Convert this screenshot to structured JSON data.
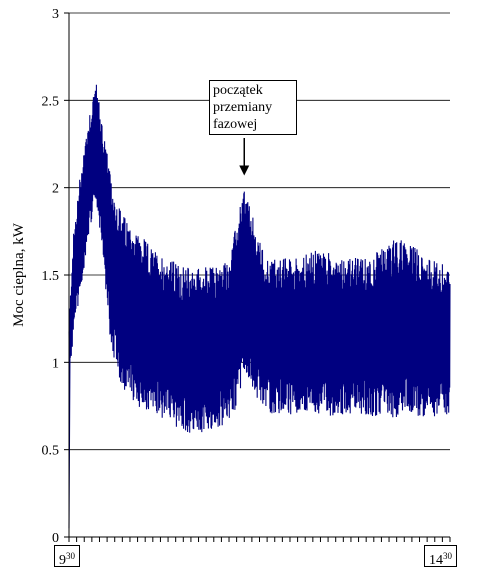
{
  "chart_data": {
    "type": "line",
    "ylabel": "Moc cieplna, kW",
    "xlabel": "",
    "ylim": [
      0,
      3
    ],
    "yticks": [
      "0",
      "0.5",
      "1",
      "1.5",
      "2",
      "2.5",
      "3"
    ],
    "ytick_values": [
      0,
      0.5,
      1,
      1.5,
      2,
      2.5,
      3
    ],
    "xlim_start": {
      "hour": "9",
      "minute": "30"
    },
    "xlim_end": {
      "hour": "14",
      "minute": "30"
    },
    "gridlines": "horizontal",
    "series": [
      {
        "color": "#000080",
        "envelope": {
          "x_hours": [
            9.5,
            9.55,
            9.65,
            9.75,
            9.85,
            9.95,
            10.05,
            10.2,
            10.4,
            10.6,
            10.8,
            11.0,
            11.2,
            11.4,
            11.6,
            11.7,
            11.8,
            11.9,
            12.0,
            12.1,
            12.2,
            12.4,
            12.6,
            12.8,
            13.0,
            13.2,
            13.4,
            13.6,
            13.8,
            14.0,
            14.2,
            14.5
          ],
          "upper": [
            1.2,
            1.7,
            2.1,
            2.4,
            2.62,
            2.35,
            2.05,
            1.85,
            1.75,
            1.65,
            1.6,
            1.55,
            1.55,
            1.55,
            1.6,
            1.8,
            2.02,
            1.85,
            1.7,
            1.6,
            1.6,
            1.6,
            1.62,
            1.65,
            1.62,
            1.6,
            1.6,
            1.65,
            1.72,
            1.68,
            1.6,
            1.55
          ],
          "lower": [
            0.9,
            1.1,
            1.4,
            1.7,
            1.95,
            1.6,
            1.05,
            0.85,
            0.75,
            0.7,
            0.65,
            0.6,
            0.58,
            0.6,
            0.65,
            0.75,
            0.9,
            0.85,
            0.75,
            0.72,
            0.7,
            0.7,
            0.7,
            0.68,
            0.7,
            0.7,
            0.7,
            0.68,
            0.68,
            0.7,
            0.68,
            0.7
          ]
        }
      }
    ],
    "annotation": {
      "text_lines": [
        "początek",
        "przemiany",
        "fazowej"
      ],
      "x_hours": 11.8,
      "y": 2.07
    }
  }
}
